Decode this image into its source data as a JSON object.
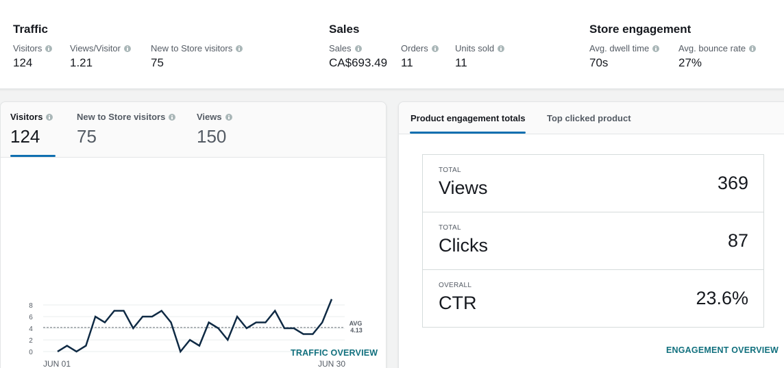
{
  "summary": {
    "traffic": {
      "title": "Traffic",
      "metrics": [
        {
          "label": "Visitors",
          "value": "124"
        },
        {
          "label": "Views/Visitor",
          "value": "1.21"
        },
        {
          "label": "New to Store visitors",
          "value": "75"
        }
      ]
    },
    "sales": {
      "title": "Sales",
      "metrics": [
        {
          "label": "Sales",
          "value": "CA$693.49"
        },
        {
          "label": "Orders",
          "value": "11"
        },
        {
          "label": "Units sold",
          "value": "11"
        }
      ]
    },
    "engagement": {
      "title": "Store engagement",
      "metrics": [
        {
          "label": "Avg. dwell time",
          "value": "70s"
        },
        {
          "label": "Avg. bounce rate",
          "value": "27%"
        }
      ]
    }
  },
  "traffic_panel": {
    "tabs": [
      {
        "label": "Visitors",
        "value": "124"
      },
      {
        "label": "New to Store visitors",
        "value": "75"
      },
      {
        "label": "Views",
        "value": "150"
      }
    ],
    "active_tab": 0,
    "link": "TRAFFIC OVERVIEW"
  },
  "chart_data": {
    "type": "line",
    "x_labels": [
      "JUN 01",
      "JUN 30"
    ],
    "x": [
      1,
      2,
      3,
      4,
      5,
      6,
      7,
      8,
      9,
      10,
      11,
      12,
      13,
      14,
      15,
      16,
      17,
      18,
      19,
      20,
      21,
      22,
      23,
      24,
      25,
      26,
      27,
      28,
      29,
      30
    ],
    "values": [
      0,
      1,
      0,
      1,
      6,
      5,
      7,
      7,
      4,
      6,
      6,
      7,
      5,
      0,
      2,
      1,
      5,
      4,
      2,
      6,
      4,
      5,
      5,
      7,
      4,
      4,
      3,
      3,
      5,
      9
    ],
    "yticks": [
      0,
      2,
      4,
      6,
      8
    ],
    "ylim": [
      0,
      9
    ],
    "avg": {
      "label": "AVG",
      "value": "4.13"
    },
    "line_color": "#0f2a44"
  },
  "engagement_panel": {
    "tabs": [
      {
        "label": "Product engagement totals"
      },
      {
        "label": "Top clicked product"
      }
    ],
    "active_tab": 0,
    "rows": [
      {
        "caption": "TOTAL",
        "name": "Views",
        "value": "369"
      },
      {
        "caption": "TOTAL",
        "name": "Clicks",
        "value": "87"
      },
      {
        "caption": "OVERALL",
        "name": "CTR",
        "value": "23.6%"
      }
    ],
    "link": "ENGAGEMENT OVERVIEW"
  }
}
